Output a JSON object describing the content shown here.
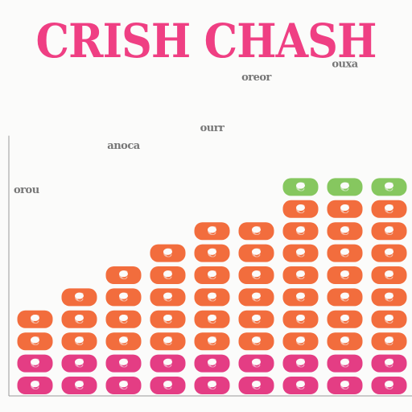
{
  "title": "CRISH CHASH",
  "colors": {
    "background": "#fbfbfa",
    "title": "#ef3f83",
    "orange": "#f26d3d",
    "pink": "#e43d84",
    "green": "#86c75f",
    "axis": "#9a9a9a",
    "label": "#777777"
  },
  "chart_data": {
    "type": "bar",
    "title": "CRISH CHASH",
    "xlabel": "",
    "ylabel": "",
    "grid": false,
    "legend": "none",
    "categories": [
      "",
      "",
      "",
      "",
      "",
      "",
      "",
      "",
      ""
    ],
    "unit_labels": [
      "C",
      "C",
      "C",
      "C",
      "C",
      "C",
      "C",
      "C",
      "C"
    ],
    "stacks": [
      [
        "pink",
        "pink",
        "orange",
        "orange"
      ],
      [
        "pink",
        "pink",
        "orange",
        "orange",
        "orange"
      ],
      [
        "pink",
        "pink",
        "orange",
        "orange",
        "orange",
        "orange"
      ],
      [
        "pink",
        "pink",
        "orange",
        "orange",
        "orange",
        "orange",
        "orange"
      ],
      [
        "pink",
        "pink",
        "orange",
        "orange",
        "orange",
        "orange",
        "orange",
        "orange"
      ],
      [
        "pink",
        "pink",
        "orange",
        "orange",
        "orange",
        "orange",
        "orange",
        "orange"
      ],
      [
        "pink",
        "pink",
        "orange",
        "orange",
        "orange",
        "orange",
        "orange",
        "orange",
        "orange",
        "green"
      ],
      [
        "pink",
        "pink",
        "orange",
        "orange",
        "orange",
        "orange",
        "orange",
        "orange",
        "orange",
        "green"
      ],
      [
        "pink",
        "pink",
        "orange",
        "orange",
        "orange",
        "orange",
        "orange",
        "orange",
        "orange",
        "green"
      ]
    ],
    "values": [
      4,
      5,
      6,
      7,
      8,
      8,
      10,
      10,
      10
    ],
    "ylim": [
      0,
      11
    ],
    "annotations": [
      {
        "text": "orou",
        "category_index": 0,
        "value": 9.2
      },
      {
        "text": "anoca",
        "category_index": 2,
        "value": 11.2
      },
      {
        "text": "ourr",
        "category_index": 4,
        "value": 12.0
      },
      {
        "text": "oreor",
        "category_index": 5,
        "value": 14.3
      },
      {
        "text": "ouxa",
        "category_index": 7,
        "value": 14.9
      }
    ]
  }
}
